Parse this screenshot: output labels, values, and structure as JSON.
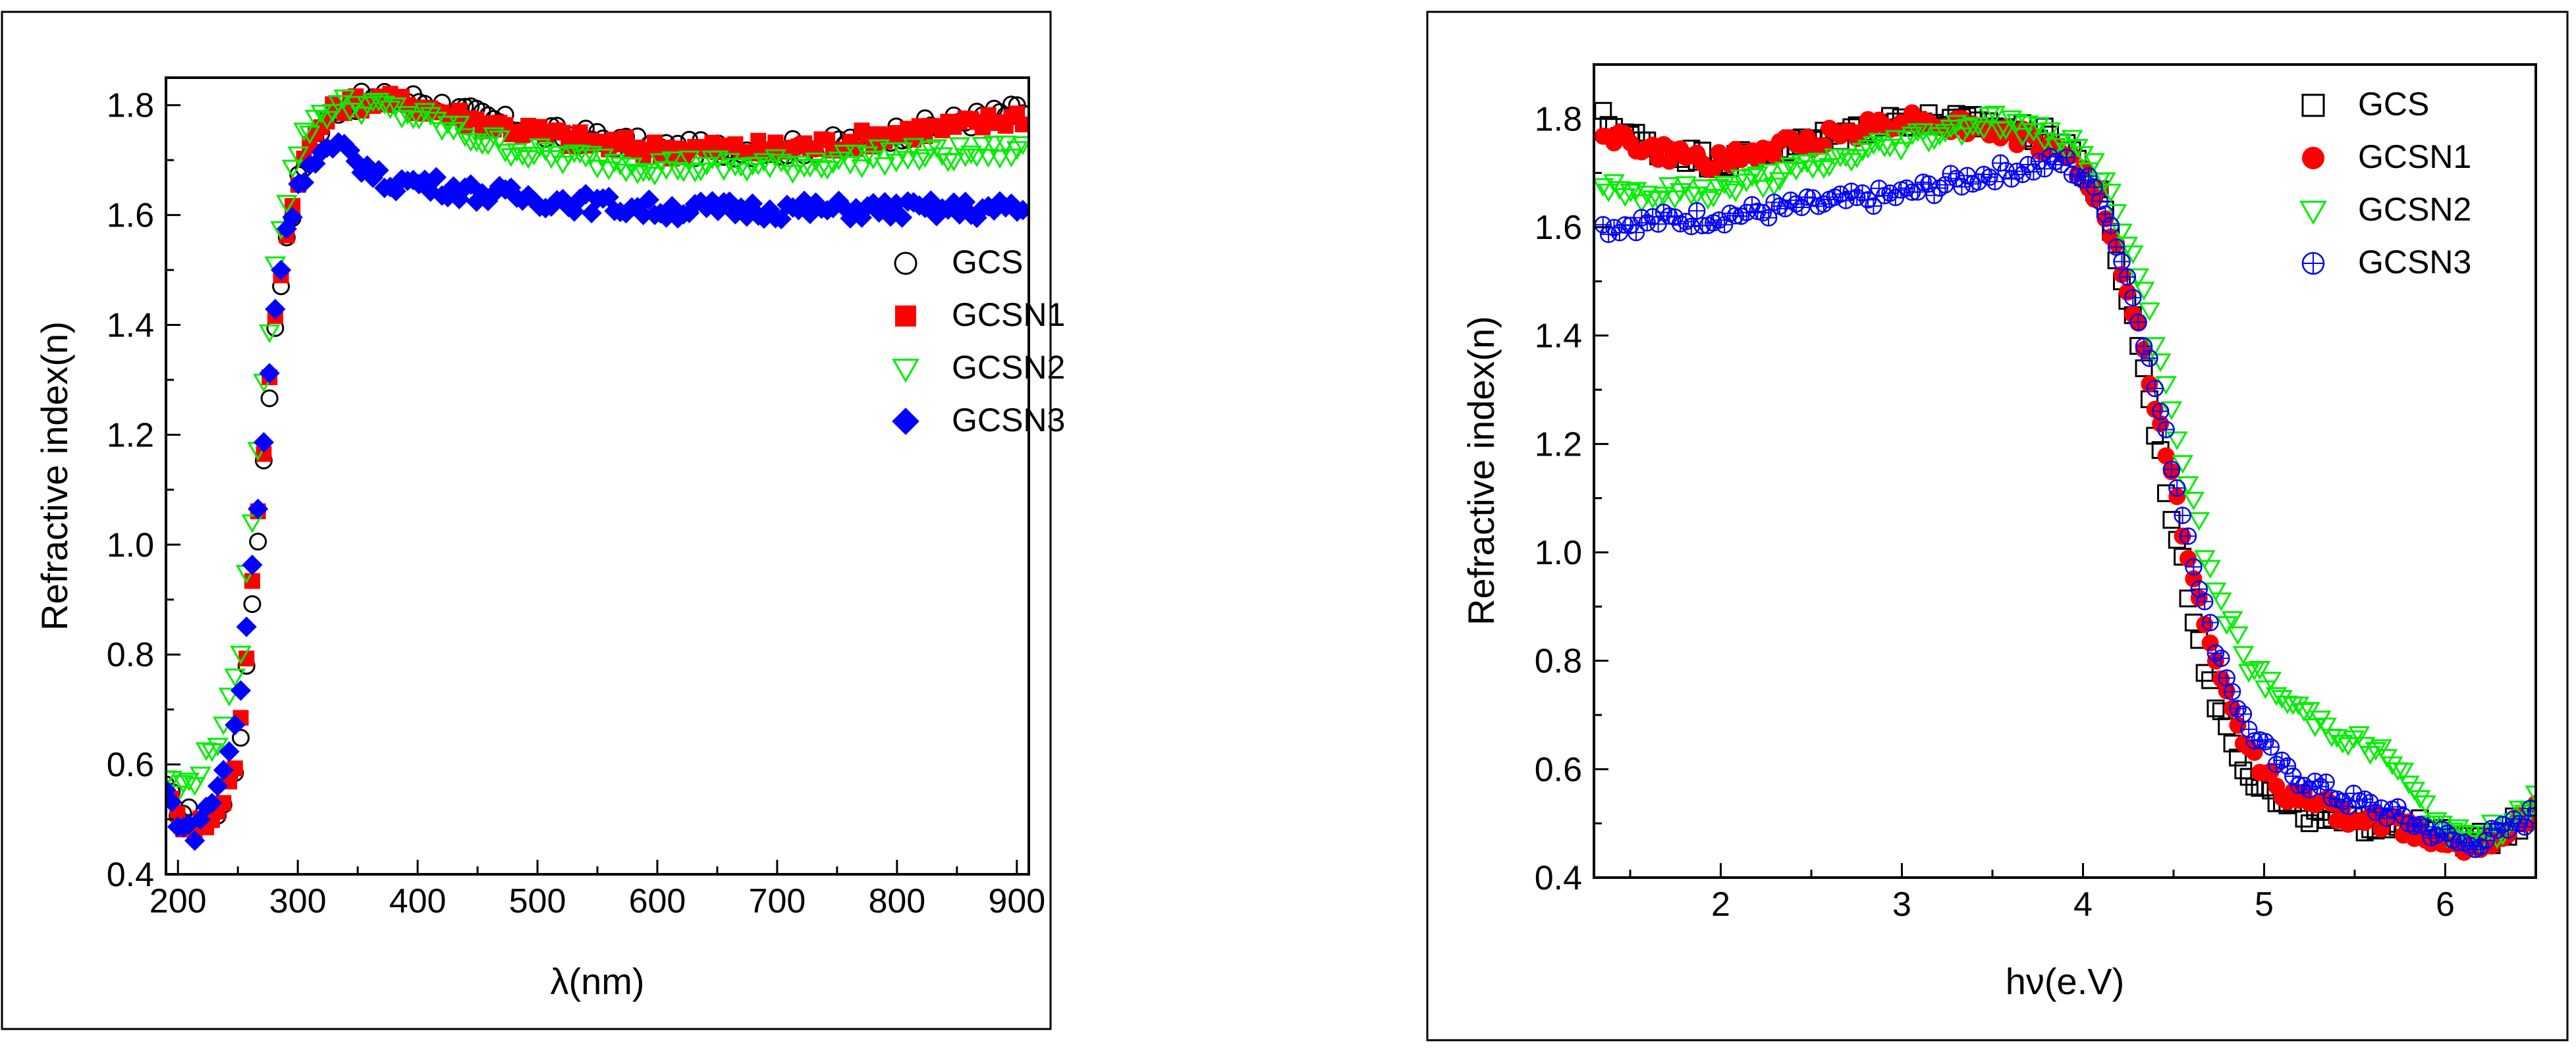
{
  "chart_data": [
    {
      "type": "scatter",
      "xlabel": "λ(nm)",
      "ylabel": "Refractive index(n)",
      "xlim": [
        190,
        910
      ],
      "ylim": [
        0.4,
        1.85
      ],
      "x_ticks": [
        200,
        300,
        400,
        500,
        600,
        700,
        800,
        900
      ],
      "x_tick_labels": [
        "200",
        "300",
        "400",
        "500",
        "600",
        "700",
        "800",
        "900"
      ],
      "y_ticks": [
        0.4,
        0.6,
        0.8,
        1.0,
        1.2,
        1.4,
        1.6,
        1.8
      ],
      "y_tick_labels": [
        "0.4",
        "0.6",
        "0.8",
        "1.0",
        "1.2",
        "1.4",
        "1.6",
        "1.8"
      ],
      "legend_position": "center-right",
      "series": [
        {
          "name": "GCS",
          "marker": "open-circle",
          "color": "#000000",
          "anchors": [
            [
              190,
              0.55
            ],
            [
              200,
              0.52
            ],
            [
              215,
              0.5
            ],
            [
              232,
              0.51
            ],
            [
              250,
              0.6
            ],
            [
              268,
              1.05
            ],
            [
              283,
              1.45
            ],
            [
              300,
              1.66
            ],
            [
              315,
              1.74
            ],
            [
              335,
              1.8
            ],
            [
              360,
              1.81
            ],
            [
              400,
              1.81
            ],
            [
              450,
              1.78
            ],
            [
              500,
              1.75
            ],
            [
              550,
              1.74
            ],
            [
              600,
              1.72
            ],
            [
              650,
              1.72
            ],
            [
              700,
              1.72
            ],
            [
              750,
              1.73
            ],
            [
              800,
              1.75
            ],
            [
              850,
              1.77
            ],
            [
              905,
              1.79
            ]
          ]
        },
        {
          "name": "GCSN1",
          "marker": "filled-square",
          "color": "#ff0000",
          "anchors": [
            [
              190,
              0.55
            ],
            [
              200,
              0.5
            ],
            [
              215,
              0.49
            ],
            [
              232,
              0.5
            ],
            [
              250,
              0.62
            ],
            [
              268,
              1.08
            ],
            [
              283,
              1.47
            ],
            [
              300,
              1.67
            ],
            [
              315,
              1.75
            ],
            [
              335,
              1.8
            ],
            [
              360,
              1.81
            ],
            [
              400,
              1.8
            ],
            [
              450,
              1.77
            ],
            [
              500,
              1.75
            ],
            [
              550,
              1.73
            ],
            [
              600,
              1.72
            ],
            [
              650,
              1.72
            ],
            [
              700,
              1.72
            ],
            [
              750,
              1.73
            ],
            [
              800,
              1.75
            ],
            [
              850,
              1.76
            ],
            [
              905,
              1.78
            ]
          ]
        },
        {
          "name": "GCSN2",
          "marker": "open-triangle-down",
          "color": "#00ee00",
          "anchors": [
            [
              190,
              0.58
            ],
            [
              200,
              0.55
            ],
            [
              215,
              0.58
            ],
            [
              232,
              0.64
            ],
            [
              250,
              0.76
            ],
            [
              268,
              1.2
            ],
            [
              283,
              1.56
            ],
            [
              300,
              1.72
            ],
            [
              315,
              1.78
            ],
            [
              335,
              1.8
            ],
            [
              360,
              1.8
            ],
            [
              400,
              1.78
            ],
            [
              450,
              1.74
            ],
            [
              500,
              1.71
            ],
            [
              550,
              1.7
            ],
            [
              600,
              1.69
            ],
            [
              650,
              1.69
            ],
            [
              700,
              1.69
            ],
            [
              750,
              1.7
            ],
            [
              800,
              1.71
            ],
            [
              850,
              1.71
            ],
            [
              905,
              1.72
            ]
          ]
        },
        {
          "name": "GCSN3",
          "marker": "filled-diamond",
          "color": "#0000ff",
          "anchors": [
            [
              190,
              0.55
            ],
            [
              200,
              0.5
            ],
            [
              212,
              0.47
            ],
            [
              232,
              0.55
            ],
            [
              250,
              0.68
            ],
            [
              268,
              1.1
            ],
            [
              283,
              1.48
            ],
            [
              300,
              1.66
            ],
            [
              320,
              1.71
            ],
            [
              340,
              1.72
            ],
            [
              370,
              1.66
            ],
            [
              400,
              1.66
            ],
            [
              450,
              1.64
            ],
            [
              500,
              1.63
            ],
            [
              550,
              1.62
            ],
            [
              600,
              1.61
            ],
            [
              650,
              1.61
            ],
            [
              700,
              1.61
            ],
            [
              750,
              1.61
            ],
            [
              800,
              1.61
            ],
            [
              850,
              1.61
            ],
            [
              905,
              1.61
            ]
          ]
        }
      ]
    },
    {
      "type": "scatter",
      "xlabel": "hν(e.V)",
      "ylabel": "Refractive index(n)",
      "xlim": [
        1.3,
        6.5
      ],
      "ylim": [
        0.4,
        1.9
      ],
      "x_ticks": [
        2,
        3,
        4,
        5,
        6
      ],
      "x_tick_labels": [
        "2",
        "3",
        "4",
        "5",
        "6"
      ],
      "y_ticks": [
        0.4,
        0.6,
        0.8,
        1.0,
        1.2,
        1.4,
        1.6,
        1.8
      ],
      "y_tick_labels": [
        "0.4",
        "0.6",
        "0.8",
        "1.0",
        "1.2",
        "1.4",
        "1.6",
        "1.8"
      ],
      "legend_position": "top-right",
      "series": [
        {
          "name": "GCS",
          "marker": "open-square",
          "color": "#000000",
          "anchors": [
            [
              1.35,
              1.8
            ],
            [
              1.6,
              1.75
            ],
            [
              2.0,
              1.72
            ],
            [
              2.5,
              1.76
            ],
            [
              3.0,
              1.8
            ],
            [
              3.5,
              1.79
            ],
            [
              3.9,
              1.76
            ],
            [
              4.1,
              1.65
            ],
            [
              4.3,
              1.4
            ],
            [
              4.5,
              1.05
            ],
            [
              4.7,
              0.75
            ],
            [
              4.9,
              0.6
            ],
            [
              5.1,
              0.53
            ],
            [
              5.4,
              0.5
            ],
            [
              5.7,
              0.5
            ],
            [
              5.9,
              0.49
            ],
            [
              6.1,
              0.46
            ],
            [
              6.3,
              0.48
            ],
            [
              6.5,
              0.52
            ]
          ]
        },
        {
          "name": "GCSN1",
          "marker": "filled-circle",
          "color": "#ff0000",
          "anchors": [
            [
              1.35,
              1.78
            ],
            [
              1.6,
              1.74
            ],
            [
              2.0,
              1.72
            ],
            [
              2.5,
              1.76
            ],
            [
              3.0,
              1.8
            ],
            [
              3.5,
              1.78
            ],
            [
              3.9,
              1.74
            ],
            [
              4.1,
              1.65
            ],
            [
              4.3,
              1.42
            ],
            [
              4.5,
              1.12
            ],
            [
              4.7,
              0.82
            ],
            [
              4.9,
              0.64
            ],
            [
              5.1,
              0.56
            ],
            [
              5.4,
              0.52
            ],
            [
              5.7,
              0.5
            ],
            [
              5.9,
              0.48
            ],
            [
              6.1,
              0.46
            ],
            [
              6.3,
              0.48
            ],
            [
              6.5,
              0.52
            ]
          ]
        },
        {
          "name": "GCSN2",
          "marker": "open-triangle-down",
          "color": "#00ee00",
          "anchors": [
            [
              1.35,
              1.68
            ],
            [
              1.6,
              1.66
            ],
            [
              2.0,
              1.67
            ],
            [
              2.5,
              1.71
            ],
            [
              3.0,
              1.76
            ],
            [
              3.5,
              1.8
            ],
            [
              3.9,
              1.76
            ],
            [
              4.1,
              1.7
            ],
            [
              4.3,
              1.52
            ],
            [
              4.5,
              1.25
            ],
            [
              4.7,
              0.96
            ],
            [
              4.9,
              0.8
            ],
            [
              5.1,
              0.73
            ],
            [
              5.4,
              0.67
            ],
            [
              5.7,
              0.62
            ],
            [
              5.9,
              0.52
            ],
            [
              6.1,
              0.47
            ],
            [
              6.3,
              0.49
            ],
            [
              6.5,
              0.55
            ]
          ]
        },
        {
          "name": "GCSN3",
          "marker": "crossed-circle",
          "color": "#0000ff",
          "anchors": [
            [
              1.35,
              1.6
            ],
            [
              1.6,
              1.61
            ],
            [
              2.0,
              1.62
            ],
            [
              2.5,
              1.64
            ],
            [
              3.0,
              1.66
            ],
            [
              3.5,
              1.7
            ],
            [
              3.9,
              1.72
            ],
            [
              4.1,
              1.66
            ],
            [
              4.3,
              1.45
            ],
            [
              4.5,
              1.15
            ],
            [
              4.7,
              0.86
            ],
            [
              4.9,
              0.68
            ],
            [
              5.1,
              0.6
            ],
            [
              5.4,
              0.55
            ],
            [
              5.7,
              0.52
            ],
            [
              5.9,
              0.49
            ],
            [
              6.1,
              0.46
            ],
            [
              6.3,
              0.48
            ],
            [
              6.5,
              0.52
            ]
          ]
        }
      ]
    }
  ]
}
